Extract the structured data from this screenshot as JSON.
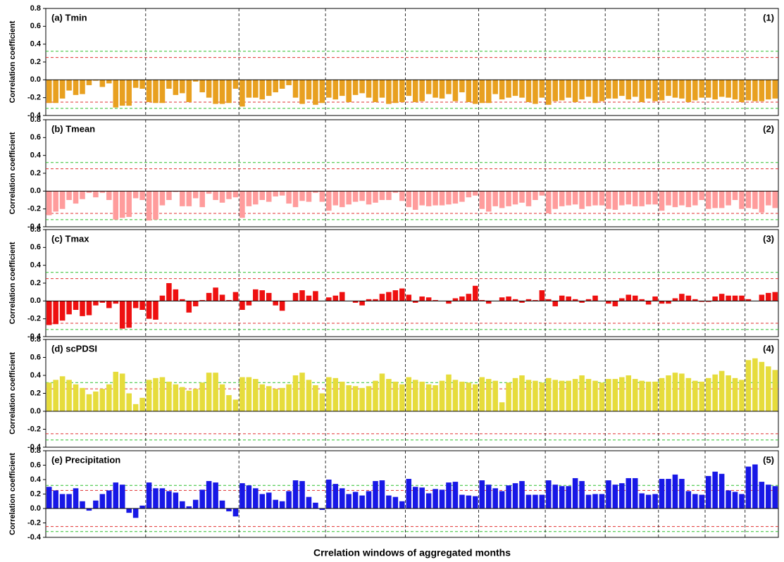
{
  "xlabel": "Crrelation windows of aggregated months",
  "chart_data": [
    {
      "type": "bar",
      "title": "(a) Tmin",
      "panel_label": "(1)",
      "ylabel": "Correlation coefficient",
      "color": "#e8a020",
      "ylim": [
        -0.4,
        0.8
      ],
      "yticks": [
        0.8,
        0.6,
        0.4,
        0.2,
        {
          "value": 0,
          "label": "0.0"
        },
        -0.2,
        -0.4
      ],
      "reference_lines": [
        {
          "value": 0.32,
          "color": "#2ec02e"
        },
        {
          "value": 0.25,
          "color": "#e03030"
        },
        {
          "value": -0.25,
          "color": "#e03030"
        },
        {
          "value": -0.32,
          "color": "#2ec02e"
        }
      ],
      "values": [
        [
          -0.26,
          -0.26,
          -0.21,
          -0.12,
          -0.17,
          -0.16,
          -0.06,
          -0.01,
          -0.08,
          -0.04,
          -0.31,
          -0.29,
          -0.29,
          -0.09,
          -0.1
        ],
        [
          -0.25,
          -0.26,
          -0.26,
          -0.1,
          -0.17,
          -0.15,
          -0.25,
          -0.02,
          -0.14,
          -0.2,
          -0.27,
          -0.27,
          -0.26,
          -0.1
        ],
        [
          -0.3,
          -0.2,
          -0.2,
          -0.22,
          -0.18,
          -0.14,
          -0.1,
          -0.06,
          -0.2,
          -0.27,
          -0.22,
          -0.28,
          -0.26
        ],
        [
          -0.2,
          -0.22,
          -0.18,
          -0.25,
          -0.17,
          -0.15,
          -0.2,
          -0.25,
          -0.2,
          -0.27,
          -0.26,
          -0.25
        ],
        [
          -0.18,
          -0.25,
          -0.24,
          -0.16,
          -0.2,
          -0.21,
          -0.16,
          -0.24,
          -0.14,
          -0.25,
          -0.27
        ],
        [
          -0.26,
          -0.26,
          -0.16,
          -0.22,
          -0.2,
          -0.18,
          -0.2,
          -0.25,
          -0.27,
          -0.2
        ],
        [
          -0.28,
          -0.24,
          -0.23,
          -0.2,
          -0.25,
          -0.22,
          -0.19,
          -0.26,
          -0.24
        ],
        [
          -0.21,
          -0.21,
          -0.18,
          -0.22,
          -0.19,
          -0.25,
          -0.21,
          -0.24
        ],
        [
          -0.23,
          -0.18,
          -0.2,
          -0.21,
          -0.25,
          -0.23,
          -0.2
        ],
        [
          -0.2,
          -0.22,
          -0.19,
          -0.2,
          -0.22,
          -0.25
        ],
        [
          -0.23,
          -0.24,
          -0.24,
          -0.22,
          -0.21
        ]
      ]
    },
    {
      "type": "bar",
      "title": "(b) Tmean",
      "panel_label": "(2)",
      "ylabel": "Correlation coefficient",
      "color": "#ff9c9c",
      "ylim": [
        -0.4,
        0.8
      ],
      "yticks": [
        0.8,
        0.6,
        0.4,
        0.2,
        {
          "value": 0,
          "label": "0.0"
        },
        -0.2,
        -0.4
      ],
      "reference_lines": [
        {
          "value": 0.32,
          "color": "#2ec02e"
        },
        {
          "value": 0.25,
          "color": "#e03030"
        },
        {
          "value": -0.25,
          "color": "#e03030"
        },
        {
          "value": -0.32,
          "color": "#2ec02e"
        }
      ],
      "values": [
        [
          -0.27,
          -0.23,
          -0.2,
          -0.1,
          -0.14,
          -0.09,
          -0.02,
          -0.07,
          -0.02,
          -0.1,
          -0.32,
          -0.3,
          -0.29,
          -0.08,
          -0.1
        ],
        [
          -0.33,
          -0.32,
          -0.16,
          -0.1,
          -0.01,
          -0.17,
          -0.17,
          -0.08,
          -0.18,
          -0.03,
          -0.1,
          -0.13,
          -0.09,
          -0.07
        ],
        [
          -0.3,
          -0.17,
          -0.15,
          -0.1,
          -0.12,
          -0.06,
          -0.05,
          -0.14,
          -0.18,
          -0.11,
          -0.12,
          -0.02,
          -0.12
        ],
        [
          -0.22,
          -0.16,
          -0.18,
          -0.15,
          -0.12,
          -0.11,
          -0.15,
          -0.13,
          -0.1,
          -0.1,
          -0.02,
          -0.11
        ],
        [
          -0.18,
          -0.21,
          -0.16,
          -0.17,
          -0.16,
          -0.16,
          -0.15,
          -0.14,
          -0.12,
          -0.07,
          -0.05
        ],
        [
          -0.2,
          -0.23,
          -0.17,
          -0.19,
          -0.17,
          -0.15,
          -0.13,
          -0.17,
          -0.1,
          -0.05
        ],
        [
          -0.25,
          -0.2,
          -0.17,
          -0.16,
          -0.15,
          -0.2,
          -0.17,
          -0.16,
          -0.16
        ],
        [
          -0.2,
          -0.21,
          -0.16,
          -0.15,
          -0.17,
          -0.17,
          -0.15,
          -0.15
        ],
        [
          -0.22,
          -0.16,
          -0.18,
          -0.16,
          -0.18,
          -0.16,
          -0.1
        ],
        [
          -0.2,
          -0.19,
          -0.19,
          -0.16,
          -0.1,
          -0.2
        ],
        [
          -0.19,
          -0.2,
          -0.24,
          -0.16,
          -0.19
        ]
      ]
    },
    {
      "type": "bar",
      "title": "(c) Tmax",
      "panel_label": "(3)",
      "ylabel": "Correlation coefficient",
      "color": "#ee1010",
      "ylim": [
        -0.4,
        0.8
      ],
      "yticks": [
        0.8,
        0.6,
        0.4,
        0.2,
        {
          "value": 0,
          "label": "0.0"
        },
        -0.2,
        -0.4
      ],
      "reference_lines": [
        {
          "value": 0.32,
          "color": "#2ec02e"
        },
        {
          "value": 0.25,
          "color": "#e03030"
        },
        {
          "value": -0.25,
          "color": "#e03030"
        },
        {
          "value": -0.32,
          "color": "#2ec02e"
        }
      ],
      "values": [
        [
          -0.27,
          -0.26,
          -0.22,
          -0.15,
          -0.1,
          -0.17,
          -0.16,
          -0.05,
          -0.02,
          -0.08,
          -0.03,
          -0.31,
          -0.3,
          -0.08,
          -0.1
        ],
        [
          -0.2,
          -0.21,
          0.06,
          0.2,
          0.13,
          0.02,
          -0.13,
          -0.06,
          0.01,
          0.09,
          0.15,
          0.07,
          0.01,
          0.1
        ],
        [
          -0.1,
          -0.05,
          0.13,
          0.12,
          0.09,
          -0.05,
          -0.11,
          0,
          0.09,
          0.12,
          0.06,
          0.11,
          0
        ],
        [
          0.04,
          0.06,
          0.1,
          0,
          -0.02,
          -0.05,
          0.02,
          0.02,
          0.08,
          0.1,
          0.12,
          0.14
        ],
        [
          0.07,
          -0.02,
          0.05,
          0.04,
          0.01,
          0,
          -0.03,
          0.03,
          0.05,
          0.08,
          0.17
        ],
        [
          0.01,
          -0.03,
          0,
          0.04,
          0.05,
          0.02,
          -0.02,
          0.02,
          0.01,
          0.12
        ],
        [
          0.02,
          -0.06,
          0.06,
          0.05,
          0.02,
          -0.02,
          0.02,
          0.06,
          0
        ],
        [
          -0.03,
          -0.06,
          0.03,
          0.07,
          0.06,
          0.02,
          -0.04,
          0.05
        ],
        [
          -0.03,
          -0.03,
          0.03,
          0.08,
          0.06,
          0.02,
          -0.01
        ],
        [
          -0.01,
          0.05,
          0.08,
          0.06,
          0.06,
          0.06
        ],
        [
          0.02,
          0,
          0.07,
          0.09,
          0.1
        ]
      ]
    },
    {
      "type": "bar",
      "title": "(d) scPDSI",
      "panel_label": "(4)",
      "ylabel": "Correlation coefficient",
      "color": "#e6dc3c",
      "ylim": [
        -0.4,
        0.8
      ],
      "yticks": [
        0.8,
        0.6,
        0.4,
        0.2,
        {
          "value": 0,
          "label": "0.0"
        },
        -0.2,
        -0.4
      ],
      "reference_lines": [
        {
          "value": 0.32,
          "color": "#2ec02e"
        },
        {
          "value": 0.25,
          "color": "#e03030"
        },
        {
          "value": -0.25,
          "color": "#e03030"
        },
        {
          "value": -0.32,
          "color": "#2ec02e"
        }
      ],
      "values": [
        [
          0.32,
          0.35,
          0.39,
          0.35,
          0.3,
          0.26,
          0.19,
          0.22,
          0.25,
          0.3,
          0.44,
          0.42,
          0.2,
          0.08,
          0.15
        ],
        [
          0.35,
          0.37,
          0.38,
          0.33,
          0.3,
          0.27,
          0.23,
          0.25,
          0.32,
          0.43,
          0.43,
          0.3,
          0.18,
          0.13
        ],
        [
          0.38,
          0.38,
          0.36,
          0.3,
          0.28,
          0.25,
          0.26,
          0.3,
          0.4,
          0.43,
          0.35,
          0.29,
          0.2
        ],
        [
          0.38,
          0.37,
          0.33,
          0.29,
          0.28,
          0.26,
          0.28,
          0.34,
          0.42,
          0.36,
          0.33,
          0.3
        ],
        [
          0.38,
          0.35,
          0.33,
          0.3,
          0.29,
          0.34,
          0.41,
          0.35,
          0.33,
          0.32,
          0.3
        ],
        [
          0.38,
          0.36,
          0.34,
          0.1,
          0.32,
          0.37,
          0.4,
          0.35,
          0.34,
          0.32
        ],
        [
          0.37,
          0.35,
          0.34,
          0.34,
          0.36,
          0.4,
          0.36,
          0.34,
          0.32
        ],
        [
          0.36,
          0.36,
          0.38,
          0.4,
          0.36,
          0.34,
          0.33,
          0.33
        ],
        [
          0.37,
          0.4,
          0.43,
          0.42,
          0.37,
          0.34,
          0.33
        ],
        [
          0.37,
          0.41,
          0.45,
          0.4,
          0.37,
          0.35
        ],
        [
          0.57,
          0.59,
          0.55,
          0.5,
          0.46
        ]
      ]
    },
    {
      "type": "bar",
      "title": "(e) Precipitation",
      "panel_label": "(5)",
      "ylabel": "Correlation coefficient",
      "color": "#1818e6",
      "ylim": [
        -0.4,
        0.8
      ],
      "yticks": [
        0.8,
        0.6,
        0.4,
        0.2,
        {
          "value": 0,
          "label": "0.0"
        },
        -0.2,
        -0.4
      ],
      "reference_lines": [
        {
          "value": 0.32,
          "color": "#2ec02e"
        },
        {
          "value": 0.25,
          "color": "#e03030"
        },
        {
          "value": -0.25,
          "color": "#e03030"
        },
        {
          "value": -0.32,
          "color": "#2ec02e"
        }
      ],
      "values": [
        [
          0.3,
          0.25,
          0.2,
          0.2,
          0.28,
          0.1,
          -0.03,
          0.11,
          0.2,
          0.25,
          0.36,
          0.33,
          -0.06,
          -0.13,
          0.04
        ],
        [
          0.36,
          0.28,
          0.28,
          0.24,
          0.22,
          0.1,
          0.03,
          0.12,
          0.26,
          0.38,
          0.36,
          0.11,
          -0.04,
          -0.11
        ],
        [
          0.35,
          0.32,
          0.28,
          0.2,
          0.22,
          0.12,
          0.1,
          0.24,
          0.39,
          0.38,
          0.16,
          0.08,
          -0.02
        ],
        [
          0.4,
          0.34,
          0.28,
          0.2,
          0.23,
          0.18,
          0.24,
          0.38,
          0.39,
          0.18,
          0.16,
          0.1
        ],
        [
          0.41,
          0.3,
          0.29,
          0.21,
          0.27,
          0.26,
          0.36,
          0.37,
          0.19,
          0.18,
          0.17
        ],
        [
          0.39,
          0.33,
          0.28,
          0.24,
          0.32,
          0.35,
          0.38,
          0.19,
          0.19,
          0.19
        ],
        [
          0.39,
          0.33,
          0.31,
          0.31,
          0.42,
          0.38,
          0.19,
          0.2,
          0.2
        ],
        [
          0.39,
          0.33,
          0.35,
          0.42,
          0.42,
          0.21,
          0.19,
          0.2
        ],
        [
          0.41,
          0.41,
          0.47,
          0.41,
          0.24,
          0.2,
          0.19
        ],
        [
          0.45,
          0.51,
          0.48,
          0.25,
          0.23,
          0.2
        ],
        [
          0.58,
          0.61,
          0.37,
          0.33,
          0.31
        ]
      ]
    }
  ]
}
